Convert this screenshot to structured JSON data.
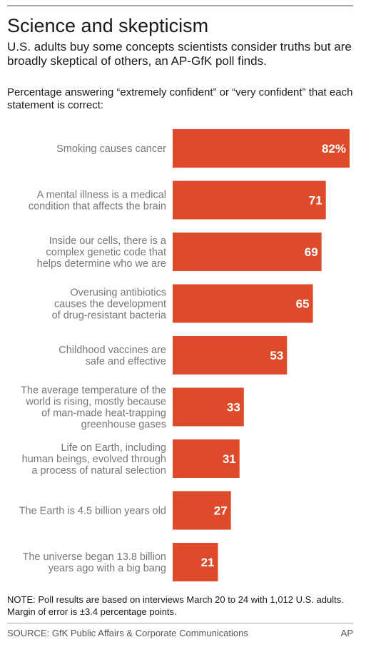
{
  "header": {
    "title": "Science and skepticism",
    "subtitle": "U.S. adults buy some concepts scientists consider truths but are broadly skeptical of others, an AP-GfK poll finds.",
    "question": "Percentage answering “extremely confident” or “very confident” that each statement is correct:"
  },
  "chart_data": {
    "type": "bar",
    "orientation": "horizontal",
    "categories": [
      [
        "Smoking causes cancer"
      ],
      [
        "A mental illness is a medical",
        "condition that affects the brain"
      ],
      [
        "Inside our cells, there is a",
        "complex genetic code that",
        "helps determine who we are"
      ],
      [
        "Overusing antibiotics",
        "causes the development",
        "of drug-resistant bacteria"
      ],
      [
        "Childhood vaccines are",
        "safe and effective"
      ],
      [
        "The average temperature of the",
        "world is rising, mostly because",
        "of man-made heat-trapping",
        "greenhouse gases"
      ],
      [
        "Life on Earth, including",
        "human beings, evolved through",
        "a process of natural selection"
      ],
      [
        "The Earth is 4.5 billion years old"
      ],
      [
        "The universe began 13.8 billion",
        "years ago with a big bang"
      ]
    ],
    "values": [
      82,
      71,
      69,
      65,
      53,
      33,
      31,
      27,
      21
    ],
    "value_labels": [
      "82%",
      "71",
      "69",
      "65",
      "53",
      "33",
      "31",
      "27",
      "21"
    ],
    "xlim": [
      0,
      82
    ],
    "bar_color": "#dd4b2a",
    "label_color": "#777777",
    "value_label_color": "#ffffff"
  },
  "footer": {
    "note": "NOTE: Poll results are based on interviews March 20 to 24 with 1,012 U.S. adults. Margin of error is ±3.4 percentage points.",
    "source": "SOURCE: GfK Public Affairs & Corporate Communications",
    "credit": "AP"
  }
}
